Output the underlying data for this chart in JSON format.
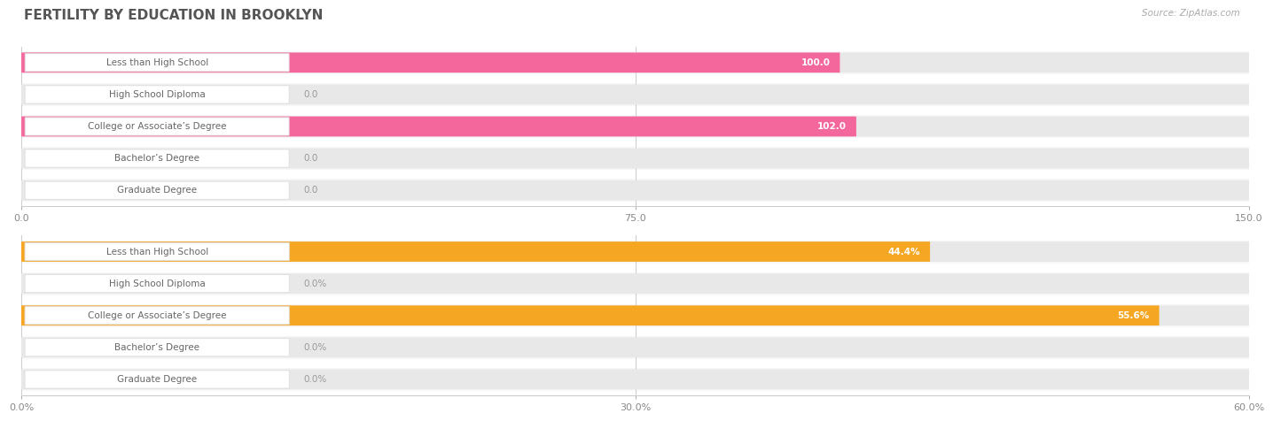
{
  "title": "FERTILITY BY EDUCATION IN BROOKLYN",
  "source": "Source: ZipAtlas.com",
  "top_chart": {
    "categories": [
      "Less than High School",
      "High School Diploma",
      "College or Associate’s Degree",
      "Bachelor’s Degree",
      "Graduate Degree"
    ],
    "values": [
      100.0,
      0.0,
      102.0,
      0.0,
      0.0
    ],
    "value_labels": [
      "100.0",
      "0.0",
      "102.0",
      "0.0",
      "0.0"
    ],
    "xlim": [
      0,
      150
    ],
    "xticks": [
      0.0,
      75.0,
      150.0
    ],
    "xtick_labels": [
      "0.0",
      "75.0",
      "150.0"
    ],
    "bar_color_active": "#f4679d",
    "bar_color_inactive": "#f9b8cf",
    "active_threshold": 50.0
  },
  "bottom_chart": {
    "categories": [
      "Less than High School",
      "High School Diploma",
      "College or Associate’s Degree",
      "Bachelor’s Degree",
      "Graduate Degree"
    ],
    "values": [
      44.4,
      0.0,
      55.6,
      0.0,
      0.0
    ],
    "value_labels": [
      "44.4%",
      "0.0%",
      "55.6%",
      "0.0%",
      "0.0%"
    ],
    "xlim": [
      0,
      60
    ],
    "xticks": [
      0.0,
      30.0,
      60.0
    ],
    "xtick_labels": [
      "0.0%",
      "30.0%",
      "60.0%"
    ],
    "bar_color_active": "#f5a623",
    "bar_color_inactive": "#fad5a0",
    "active_threshold": 25.0
  },
  "background_color": "#ffffff",
  "title_color": "#555555",
  "title_fontsize": 11,
  "label_fontsize": 7.5,
  "tick_fontsize": 8,
  "source_fontsize": 7.5,
  "value_fontsize": 7.5,
  "bar_height": 0.62,
  "row_bg_color": "#f7f7f7",
  "bar_bg_color": "#e8e8e8",
  "label_box_color": "#ffffff",
  "label_box_edge": "#dddddd",
  "label_text_color": "#666666",
  "grid_color": "#cccccc",
  "inactive_value_color": "#999999",
  "active_value_color": "#ffffff"
}
